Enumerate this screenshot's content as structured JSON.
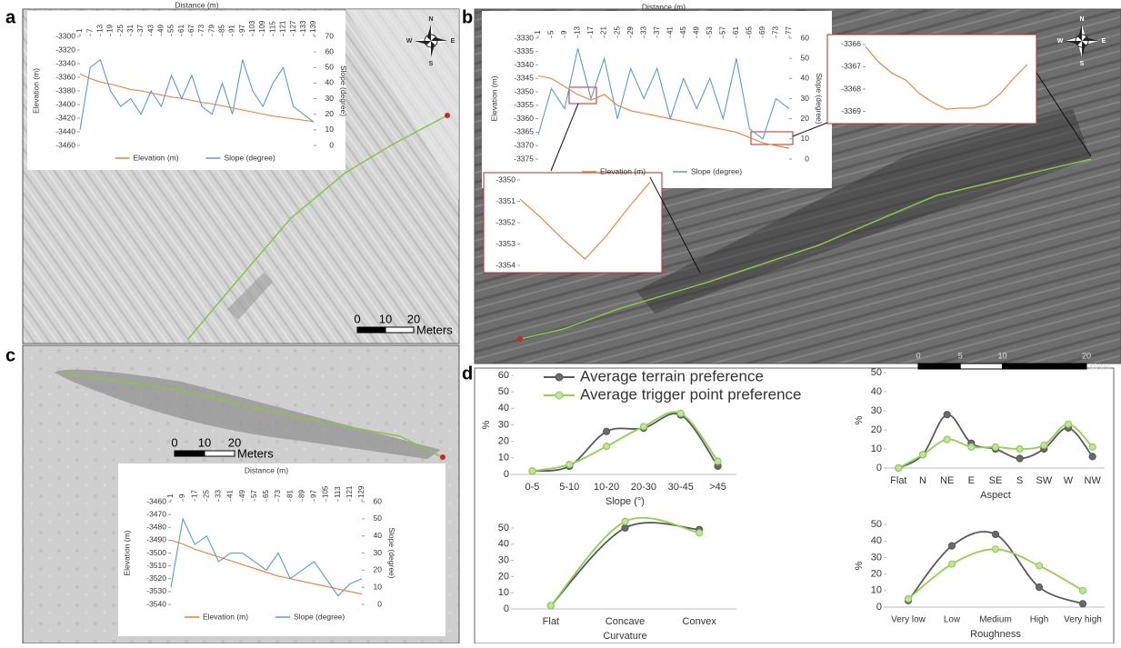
{
  "panels": {
    "labels": [
      "a",
      "b",
      "c",
      "d"
    ],
    "compass": [
      "N",
      "E",
      "S",
      "W"
    ],
    "scale_bars": [
      {
        "ticks": [
          0,
          10,
          20
        ],
        "unit": "Meters"
      },
      {
        "ticks": [
          0,
          5,
          10,
          20
        ],
        "unit": "Meter"
      },
      {
        "ticks": [
          0,
          10,
          20
        ],
        "unit": "Meters"
      }
    ]
  },
  "chart_data": [
    {
      "type": "line",
      "x_label": "Distance (m)",
      "y_label": "Elevation (m)",
      "y2_label": "Slope (degree)",
      "x": [
        1,
        7,
        13,
        19,
        25,
        31,
        37,
        43,
        49,
        55,
        61,
        67,
        73,
        79,
        85,
        91,
        97,
        103,
        109,
        115,
        121,
        127,
        133,
        139
      ],
      "xlim": [
        1,
        139
      ],
      "xticks": [
        1,
        7,
        13,
        19,
        25,
        31,
        37,
        43,
        49,
        55,
        61,
        67,
        73,
        79,
        85,
        91,
        97,
        103,
        109,
        115,
        121,
        127,
        133,
        139
      ],
      "ylim": [
        -3460,
        -3300
      ],
      "yticks": [
        -3460,
        -3440,
        -3420,
        -3400,
        -3380,
        -3360,
        -3340,
        -3320,
        -3300
      ],
      "y2lim": [
        0,
        70
      ],
      "y2ticks": [
        0,
        10,
        20,
        30,
        40,
        50,
        60,
        70
      ],
      "series": [
        {
          "name": "Elevation (m)",
          "color": "#ed7d31",
          "values": [
            -3355,
            -3362,
            -3367,
            -3370,
            -3374,
            -3378,
            -3380,
            -3383,
            -3386,
            -3389,
            -3391,
            -3394,
            -3397,
            -3399,
            -3402,
            -3405,
            -3408,
            -3411,
            -3414,
            -3417,
            -3419,
            -3421,
            -3423,
            -3425
          ]
        },
        {
          "name": "Slope (degree)",
          "color": "#5b9bd5",
          "axis": "y2",
          "values": [
            10,
            50,
            55,
            35,
            25,
            30,
            20,
            35,
            25,
            45,
            30,
            45,
            25,
            20,
            40,
            20,
            55,
            35,
            25,
            40,
            50,
            25,
            20,
            15
          ]
        }
      ]
    },
    {
      "type": "line",
      "x_label": "Distance (m)",
      "y_label": "Elevation (m)",
      "y2_label": "Slope (degree)",
      "x": [
        1,
        5,
        9,
        13,
        17,
        21,
        25,
        29,
        33,
        37,
        41,
        45,
        49,
        53,
        57,
        61,
        65,
        69,
        73,
        77
      ],
      "xlim": [
        1,
        77
      ],
      "xticks": [
        1,
        5,
        9,
        13,
        17,
        21,
        25,
        29,
        33,
        37,
        41,
        45,
        49,
        53,
        57,
        61,
        65,
        69,
        73,
        77
      ],
      "ylim": [
        -3375,
        -3330
      ],
      "yticks": [
        -3375,
        -3370,
        -3365,
        -3360,
        -3355,
        -3350,
        -3345,
        -3340,
        -3335,
        -3330
      ],
      "y2lim": [
        0,
        60
      ],
      "y2ticks": [
        0,
        10,
        20,
        30,
        40,
        50,
        60
      ],
      "series": [
        {
          "name": "Elevation (m)",
          "color": "#ed7d31",
          "values": [
            -3344,
            -3345,
            -3348,
            -3351,
            -3353,
            -3351,
            -3355,
            -3357,
            -3358,
            -3359,
            -3360,
            -3361,
            -3362,
            -3363,
            -3364,
            -3365,
            -3367,
            -3369,
            -3370,
            -3371
          ]
        },
        {
          "name": "Slope (degree)",
          "color": "#5b9bd5",
          "axis": "y2",
          "values": [
            12,
            35,
            25,
            55,
            30,
            50,
            20,
            45,
            30,
            45,
            20,
            40,
            25,
            40,
            20,
            50,
            15,
            10,
            30,
            25
          ]
        }
      ]
    },
    {
      "type": "line",
      "ylim": [
        -3354,
        -3350
      ],
      "yticks": [
        -3354,
        -3353,
        -3352,
        -3351,
        -3350
      ],
      "color": "#ed7d31",
      "values": [
        -3350.9,
        -3351.8,
        -3352.8,
        -3353.7,
        -3352.6,
        -3351.3,
        -3350.1
      ]
    },
    {
      "type": "line",
      "ylim": [
        -3369.3,
        -3365.8
      ],
      "yticks": [
        -3369,
        -3368,
        -3367,
        -3366
      ],
      "color": "#ed7d31",
      "values": [
        -3366.1,
        -3366.8,
        -3367.3,
        -3367.6,
        -3368.2,
        -3368.6,
        -3368.9,
        -3368.85,
        -3368.85,
        -3368.7,
        -3368.2,
        -3367.5,
        -3366.9
      ]
    },
    {
      "type": "line",
      "x_label": "Distance (m)",
      "y_label": "Elevation (m)",
      "y2_label": "Slope (degree)",
      "x": [
        1,
        9,
        17,
        25,
        33,
        41,
        49,
        57,
        65,
        73,
        81,
        89,
        97,
        105,
        113,
        121,
        129
      ],
      "xlim": [
        1,
        129
      ],
      "xticks": [
        1,
        9,
        17,
        25,
        33,
        41,
        49,
        57,
        65,
        73,
        81,
        89,
        97,
        105,
        113,
        121,
        129
      ],
      "ylim": [
        -3540,
        -3460
      ],
      "yticks": [
        -3540,
        -3530,
        -3520,
        -3510,
        -3500,
        -3490,
        -3480,
        -3470,
        -3460
      ],
      "y2lim": [
        0,
        60
      ],
      "y2ticks": [
        0,
        10,
        20,
        30,
        40,
        50,
        60
      ],
      "series": [
        {
          "name": "Elevation (m)",
          "color": "#ed7d31",
          "values": [
            -3490,
            -3493,
            -3497,
            -3500,
            -3503,
            -3506,
            -3509,
            -3512,
            -3515,
            -3518,
            -3520,
            -3522,
            -3524,
            -3526,
            -3528,
            -3530,
            -3532
          ]
        },
        {
          "name": "Slope (degree)",
          "color": "#5b9bd5",
          "axis": "y2",
          "values": [
            10,
            50,
            35,
            40,
            25,
            30,
            30,
            25,
            20,
            30,
            15,
            20,
            25,
            15,
            5,
            12,
            15
          ]
        }
      ]
    },
    {
      "type": "line",
      "x_label": "Slope (°)",
      "y_label": "%",
      "categories": [
        "0-5",
        "5-10",
        "10-20",
        "20-30",
        "30-45",
        ">45"
      ],
      "ylim": [
        0,
        60
      ],
      "yticks": [
        0,
        10,
        20,
        30,
        40,
        50,
        60
      ],
      "series": [
        {
          "name": "Average terrain preference",
          "color": "#595959",
          "values": [
            2,
            5,
            26,
            28,
            36,
            5
          ]
        },
        {
          "name": "Average trigger point preference",
          "color": "#92d050",
          "values": [
            2,
            6,
            17,
            29,
            37,
            8
          ]
        }
      ]
    },
    {
      "type": "line",
      "x_label": "Aspect",
      "y_label": "%",
      "categories": [
        "Flat",
        "N",
        "NE",
        "E",
        "SE",
        "S",
        "SW",
        "W",
        "NW"
      ],
      "ylim": [
        0,
        50
      ],
      "yticks": [
        0,
        10,
        20,
        30,
        40,
        50
      ],
      "series": [
        {
          "color": "#595959",
          "values": [
            0,
            7,
            28,
            13,
            10,
            5,
            10,
            21,
            6
          ]
        },
        {
          "color": "#92d050",
          "values": [
            0,
            7,
            15,
            11,
            11,
            10,
            12,
            23,
            11
          ]
        }
      ]
    },
    {
      "type": "line",
      "x_label": "Curvature",
      "categories": [
        "Flat",
        "Concave",
        "Convex"
      ],
      "ylim": [
        0,
        55
      ],
      "yticks": [
        0,
        10,
        20,
        30,
        40,
        50
      ],
      "series": [
        {
          "color": "#595959",
          "values": [
            2,
            50,
            49
          ]
        },
        {
          "color": "#92d050",
          "values": [
            2,
            54,
            47
          ]
        }
      ]
    },
    {
      "type": "line",
      "x_label": "Roughness",
      "y_label": "%",
      "categories": [
        "Very low",
        "Low",
        "Medium",
        "High",
        "Very high"
      ],
      "ylim": [
        0,
        50
      ],
      "yticks": [
        0,
        10,
        20,
        30,
        40,
        50
      ],
      "series": [
        {
          "color": "#595959",
          "values": [
            4,
            37,
            44,
            12,
            2
          ]
        },
        {
          "color": "#92d050",
          "values": [
            5,
            26,
            35,
            25,
            10
          ]
        }
      ]
    }
  ]
}
